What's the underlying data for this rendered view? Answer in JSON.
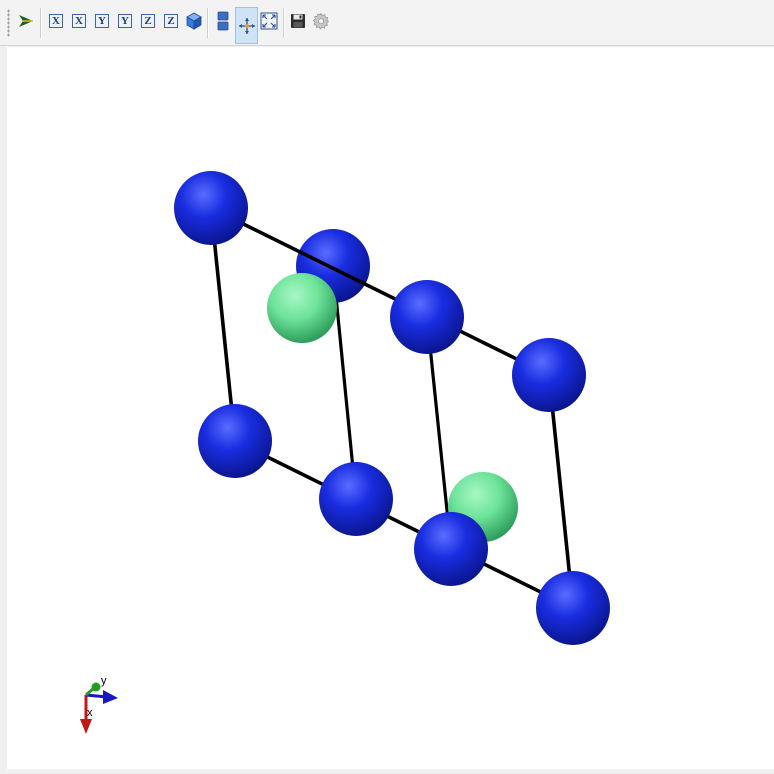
{
  "toolbar": {
    "buttons": [
      {
        "id": "pick-mode",
        "icon": "pick-arrow-icon"
      },
      {
        "id": "view-x-pos",
        "icon": "x-axis-view-icon",
        "label": "X"
      },
      {
        "id": "view-x-neg",
        "icon": "x-axis-view-icon",
        "label": "X"
      },
      {
        "id": "view-y-pos",
        "icon": "y-axis-view-icon",
        "label": "Y"
      },
      {
        "id": "view-y-neg",
        "icon": "y-axis-view-icon",
        "label": "Y"
      },
      {
        "id": "view-z-pos",
        "icon": "z-axis-view-icon",
        "label": "Z"
      },
      {
        "id": "view-z-neg",
        "icon": "z-axis-view-icon",
        "label": "Z"
      },
      {
        "id": "isometric-view",
        "icon": "cube-icon"
      },
      {
        "id": "layout-toggle",
        "icon": "layout-icon"
      },
      {
        "id": "rotate-mode",
        "icon": "rotate-icon",
        "active": true
      },
      {
        "id": "fit-view",
        "icon": "fit-to-view-icon"
      },
      {
        "id": "save-image",
        "icon": "save-icon"
      },
      {
        "id": "settings",
        "icon": "gear-icon"
      }
    ]
  },
  "scene": {
    "atom_colors": {
      "primary": "#1a2de0",
      "secondary": "#6de39a"
    },
    "bond_color": "#000000",
    "axes": {
      "x_label": "x",
      "y_label": "y",
      "x_color": "#c01818",
      "y_color": "#1ea01e",
      "z_color": "#1818c0"
    }
  }
}
